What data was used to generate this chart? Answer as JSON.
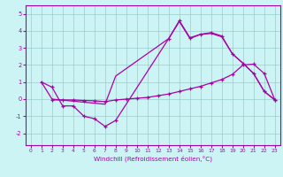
{
  "xlabel": "Windchill (Refroidissement éolien,°C)",
  "bg_color": "#cdf4f4",
  "grid_color": "#99cccc",
  "line_color": "#aa00aa",
  "yticks": [
    -2,
    -1,
    0,
    1,
    2,
    3,
    4,
    5
  ],
  "xticks": [
    0,
    1,
    2,
    3,
    4,
    5,
    6,
    7,
    8,
    9,
    10,
    11,
    12,
    13,
    14,
    15,
    16,
    17,
    18,
    19,
    20,
    21,
    22,
    23
  ],
  "xlim": [
    -0.5,
    23.5
  ],
  "ylim": [
    -2.7,
    5.5
  ],
  "line1_x": [
    1,
    2,
    3,
    4,
    5,
    6,
    7,
    8,
    13,
    14,
    15,
    16,
    17,
    18,
    19,
    20,
    21,
    22,
    23
  ],
  "line1_y": [
    1.0,
    0.7,
    -0.4,
    -0.4,
    -1.0,
    -1.15,
    -1.6,
    -1.25,
    3.55,
    4.6,
    3.6,
    3.8,
    3.9,
    3.7,
    2.65,
    2.1,
    1.5,
    0.45,
    -0.05
  ],
  "line2_x": [
    1,
    2,
    7,
    8,
    13,
    14,
    15,
    16,
    17,
    18,
    19,
    20,
    21,
    22,
    23
  ],
  "line2_y": [
    1.0,
    0.0,
    -0.3,
    1.35,
    3.55,
    4.55,
    3.55,
    3.8,
    3.85,
    3.65,
    2.65,
    2.1,
    1.5,
    0.45,
    -0.05
  ],
  "line3_x": [
    2,
    3,
    4,
    5,
    6,
    7,
    8,
    9,
    10,
    11,
    12,
    13,
    14,
    15,
    16,
    17,
    18,
    19,
    20,
    21,
    22,
    23
  ],
  "line3_y": [
    -0.05,
    -0.05,
    -0.05,
    -0.08,
    -0.1,
    -0.15,
    -0.05,
    0.0,
    0.05,
    0.1,
    0.2,
    0.3,
    0.45,
    0.6,
    0.75,
    0.95,
    1.15,
    1.45,
    2.0,
    2.05,
    1.5,
    -0.05
  ]
}
